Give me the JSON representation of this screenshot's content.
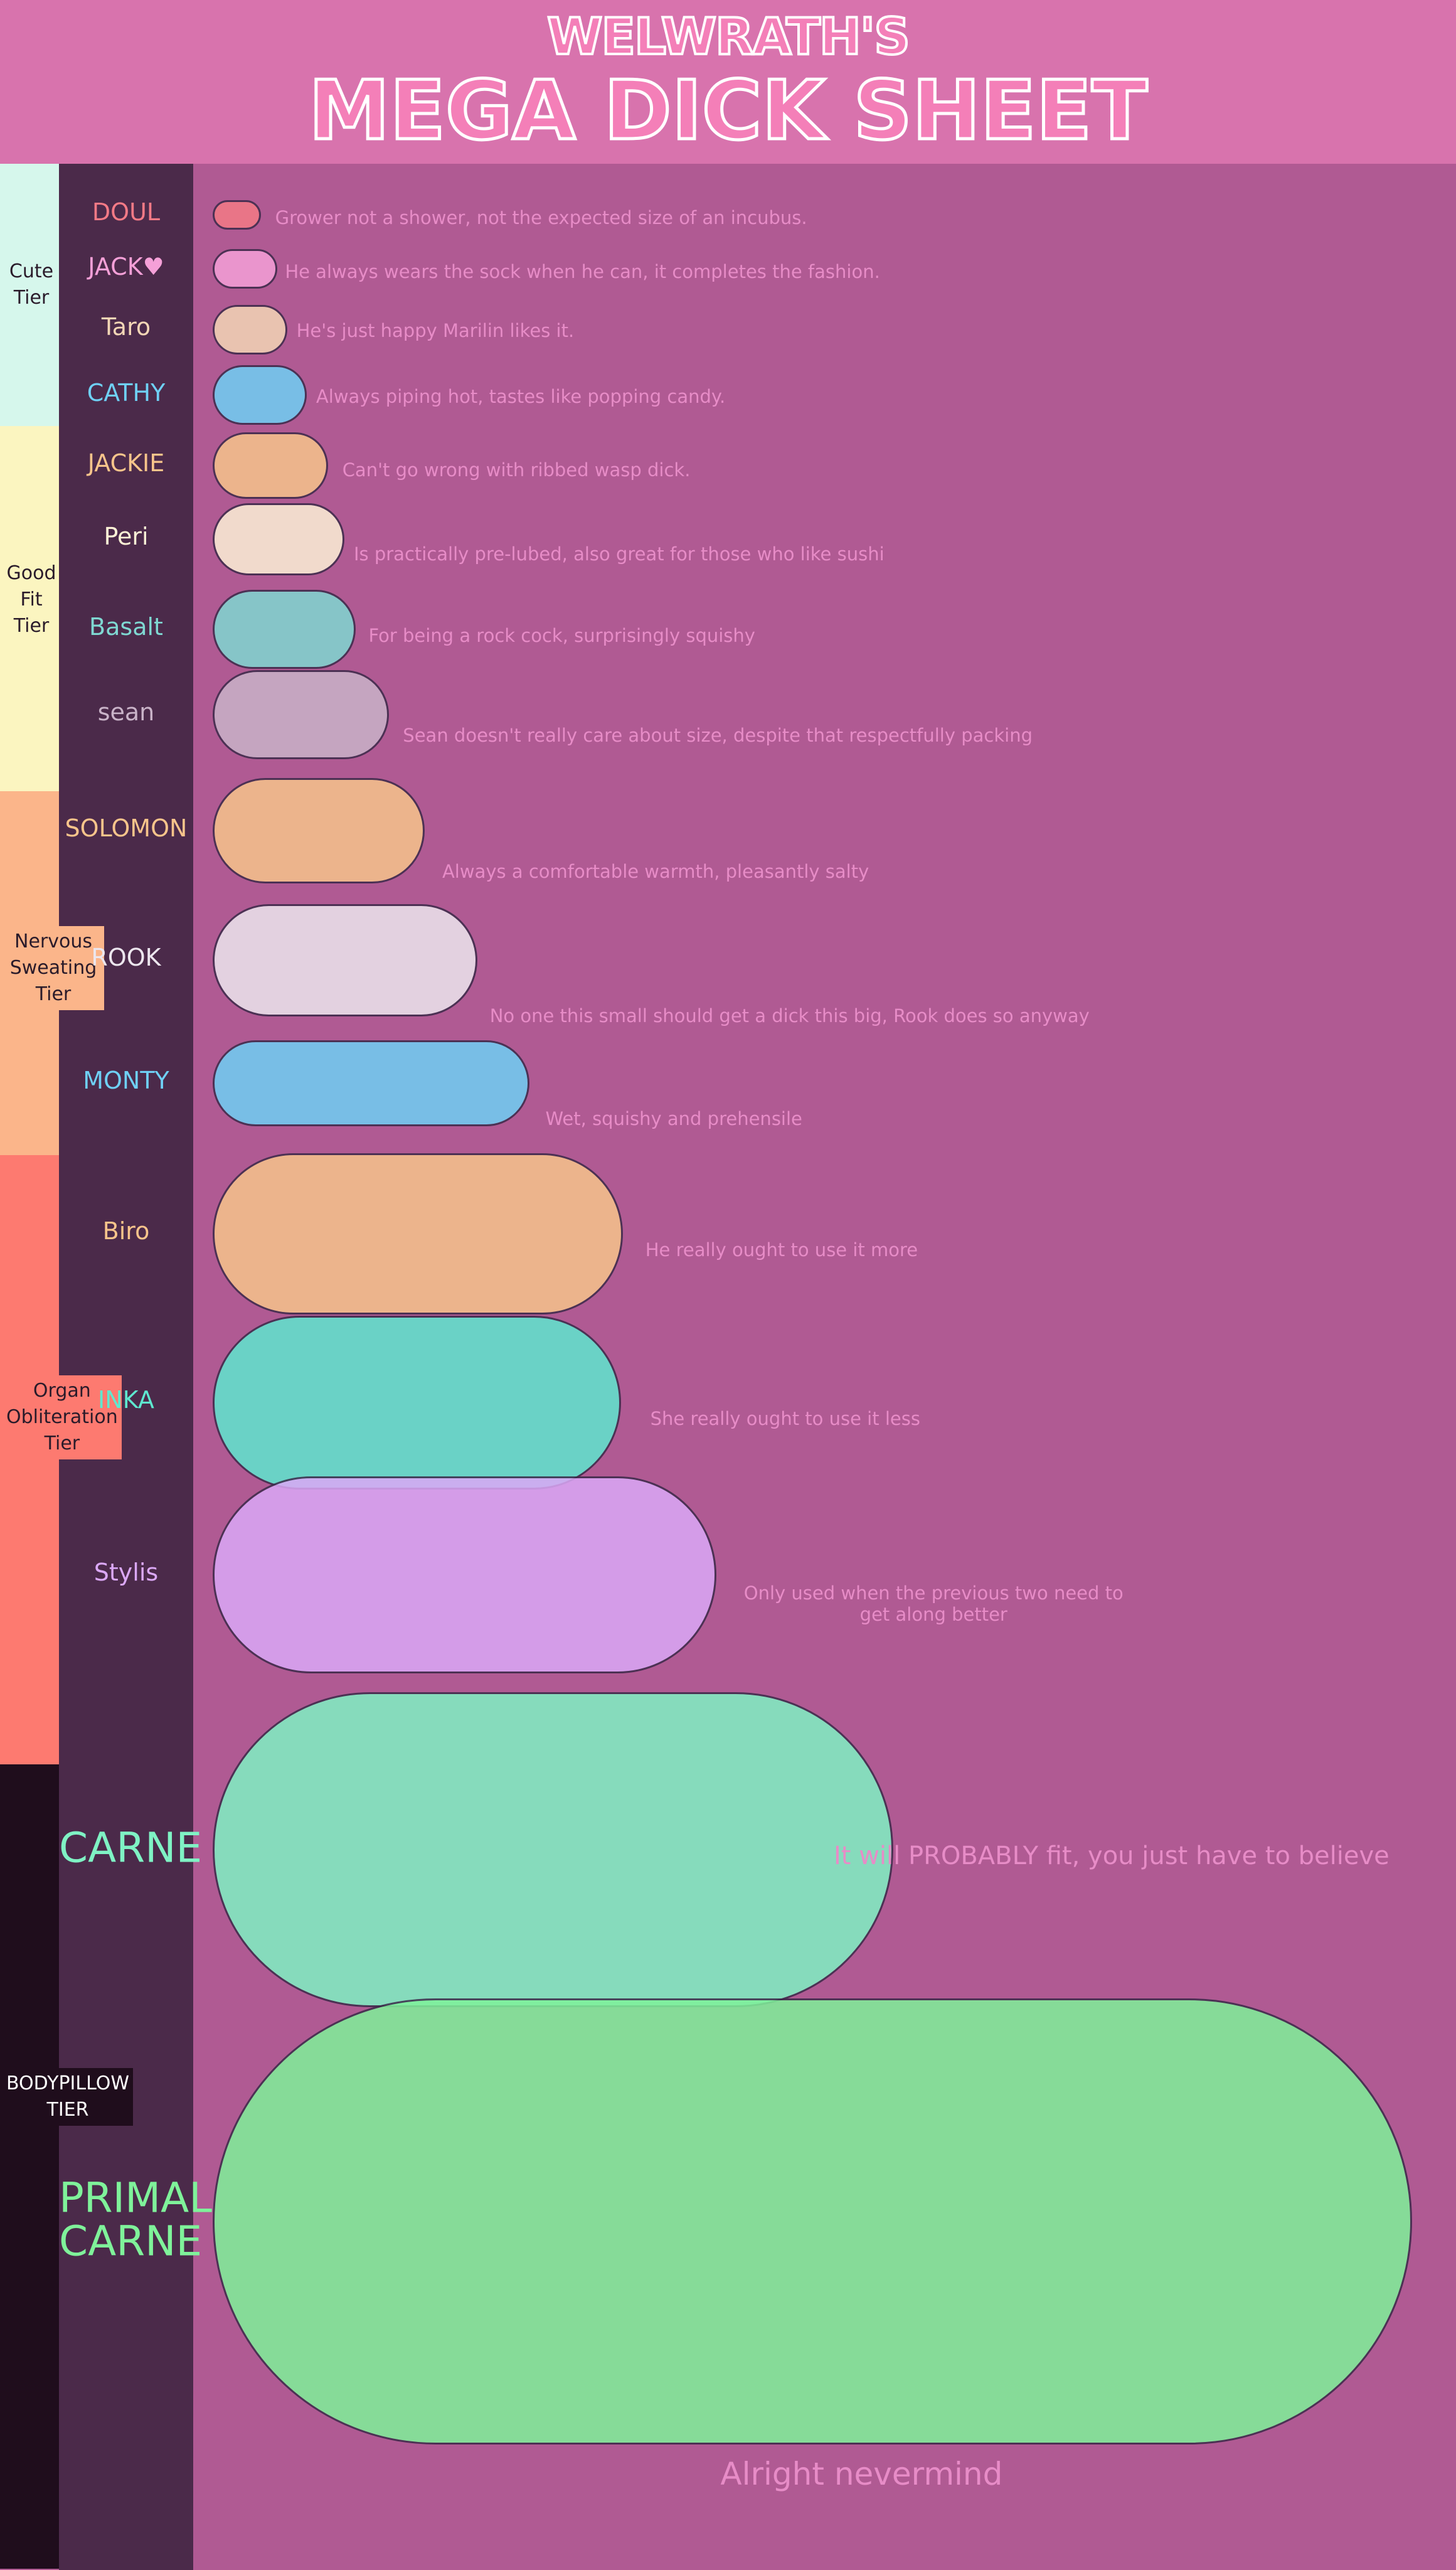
{
  "header": {
    "subtitle": "WELWRATH'S",
    "title": "MEGA DICK SHEET"
  },
  "tiers": [
    {
      "label": "Cute\nTier",
      "color": "#d6f7ec"
    },
    {
      "label": "Good\nFit\nTier",
      "color": "#fbf5c0"
    },
    {
      "label": "Nervous\nSweating\nTier",
      "color": "#fbb58a"
    },
    {
      "label": "Organ\nObliteration\nTier",
      "color": "#fd7a70"
    },
    {
      "label": "BODYPILLOW\nTIER",
      "color": "#1f0d1c"
    }
  ],
  "entries": [
    {
      "name": "DOUL",
      "color": "#f47a86",
      "description": "Grower not a shower, not the expected size of an incubus."
    },
    {
      "name": "JACK♥",
      "color": "#f5a0d8",
      "description": "He always wears the sock when he can, it completes the fashion."
    },
    {
      "name": "Taro",
      "color": "#f3d6b6",
      "description": "He's just happy Marilin likes it."
    },
    {
      "name": "CATHY",
      "color": "#6fd0f5",
      "description": "Always piping hot, tastes like popping candy."
    },
    {
      "name": "JACKIE",
      "color": "#f7c48b",
      "description": "Can't go wrong with ribbed wasp dick."
    },
    {
      "name": "Peri",
      "color": "#fdf1d6",
      "description": "Is practically pre-lubed, also great for those who like sushi"
    },
    {
      "name": "Basalt",
      "color": "#7fd8d2",
      "description": "For being a rock cock, surprisingly squishy"
    },
    {
      "name": "sean",
      "color": "#c9b3c8",
      "description": "Sean doesn't really care about size, despite that respectfully packing"
    },
    {
      "name": "SOLOMON",
      "color": "#f7c48b",
      "description": "Always a comfortable warmth, pleasantly salty"
    },
    {
      "name": "ROOK",
      "color": "#ece6ee",
      "description": "No one this small should get a dick this big, Rook does so anyway"
    },
    {
      "name": "MONTY",
      "color": "#6fd0f5",
      "description": "Wet, squishy and prehensile"
    },
    {
      "name": "Biro",
      "color": "#f7c48b",
      "description": "He really ought to use it more"
    },
    {
      "name": "INKA",
      "color": "#5ee8cf",
      "description": "She really ought to use it less"
    },
    {
      "name": "Stylis",
      "color": "#dba8f7",
      "description": "Only used when the previous two need to\nget along better"
    },
    {
      "name": "CARNE",
      "color": "#7ff2c4",
      "description": "It will PROBABLY fit, you just have to believe"
    },
    {
      "name": "PRIMAL\nCARNE",
      "color": "#7ff29a",
      "description": "Alright nevermind"
    }
  ]
}
